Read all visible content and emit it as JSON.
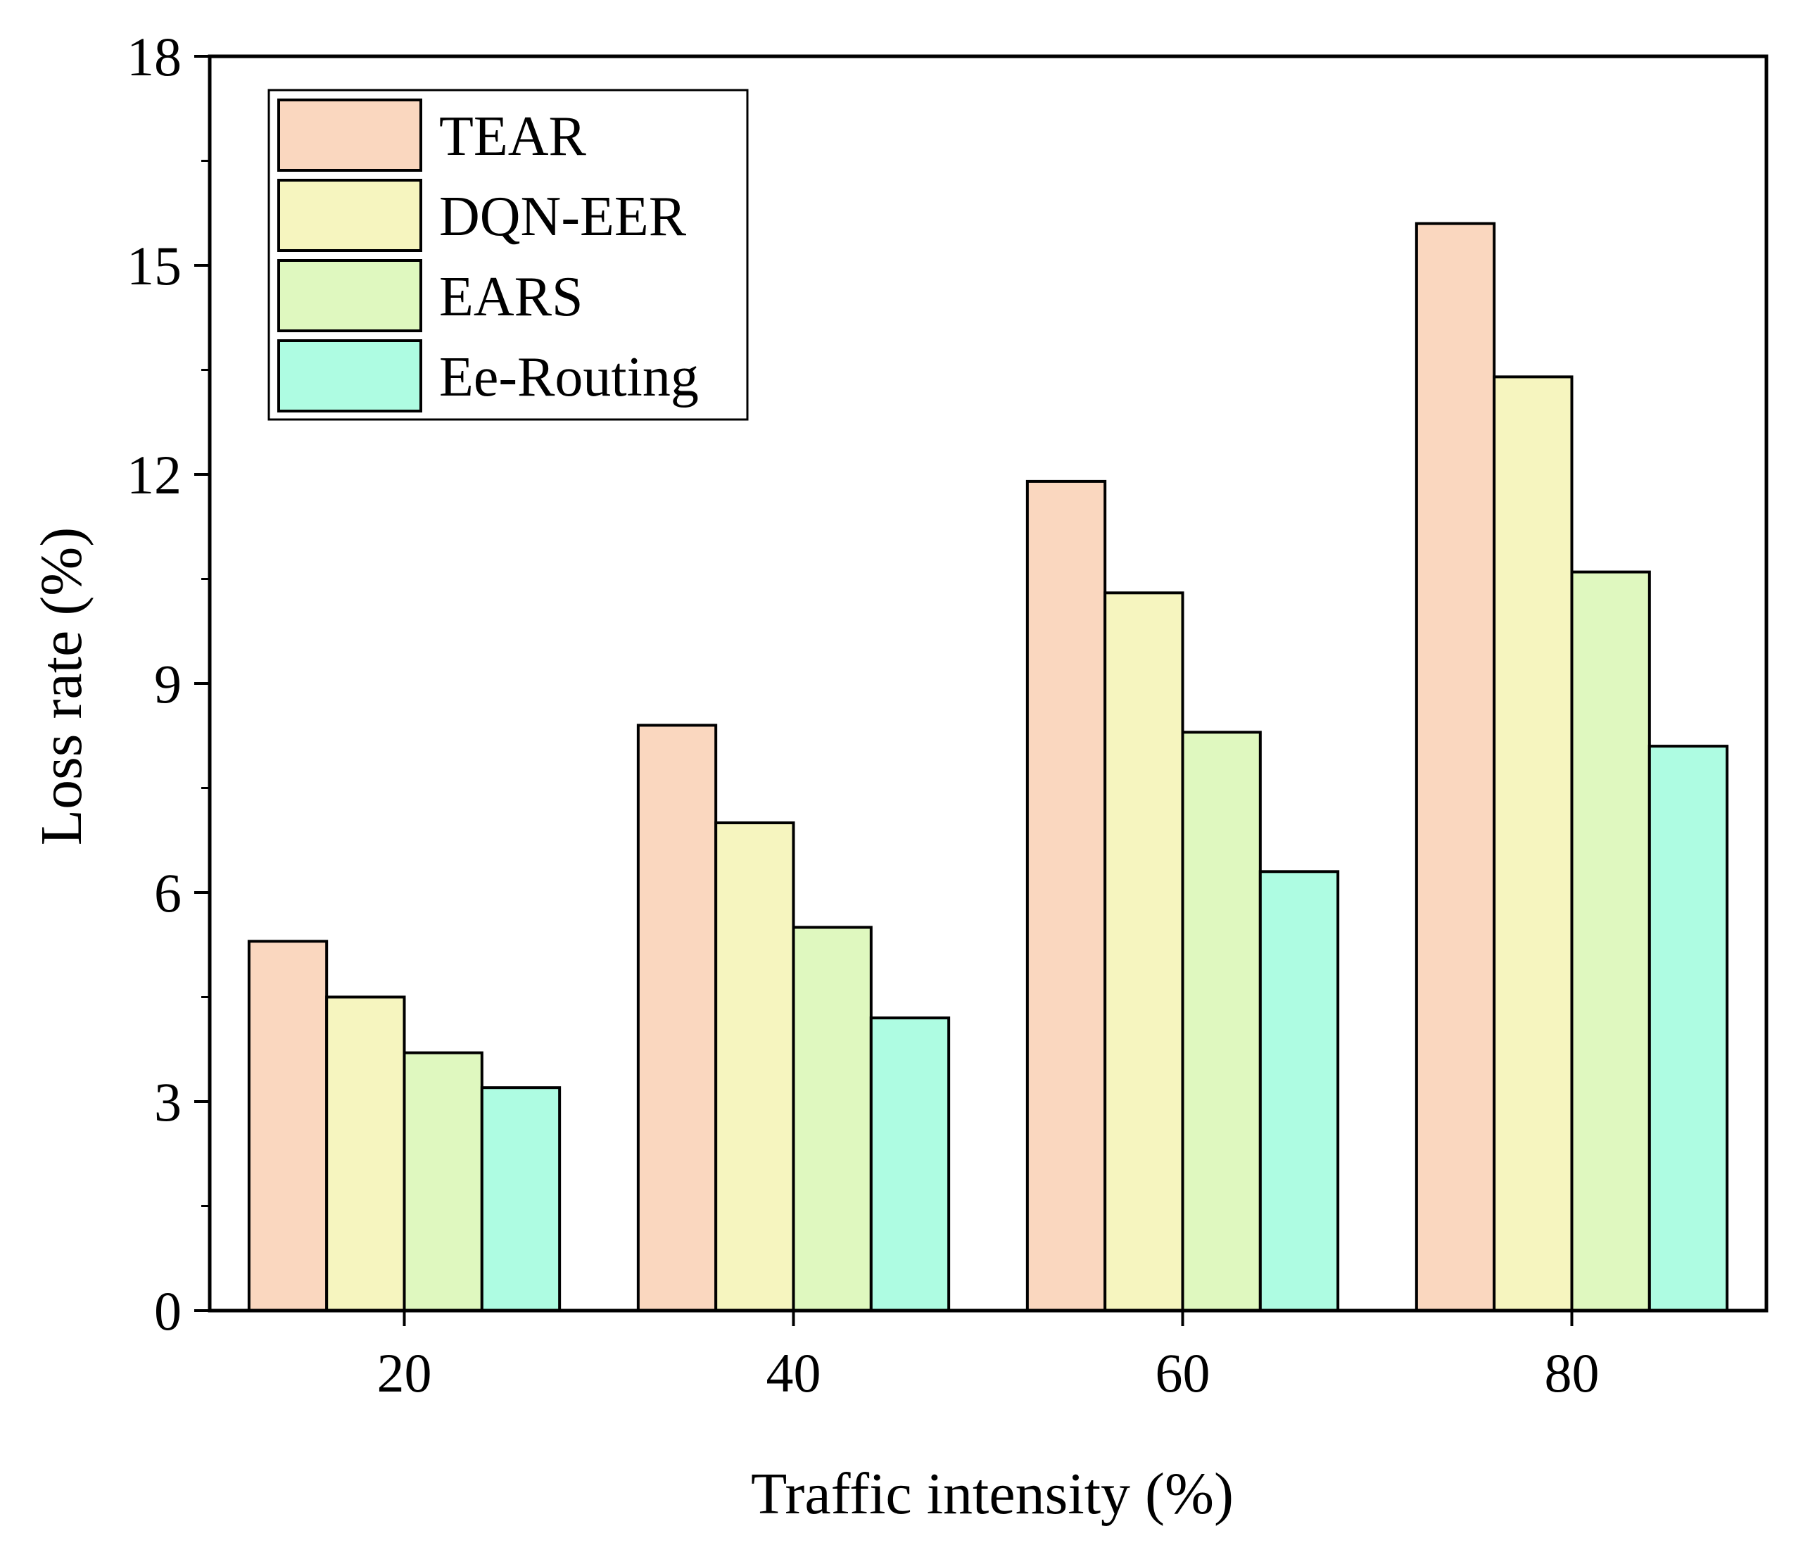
{
  "chart_data": {
    "type": "bar",
    "title": "",
    "xlabel": "Traffic intensity (%)",
    "ylabel": "Loss rate (%)",
    "categories": [
      "20",
      "40",
      "60",
      "80"
    ],
    "ylim": [
      0,
      18
    ],
    "yticks": [
      0,
      3,
      6,
      9,
      12,
      15,
      18
    ],
    "grid": false,
    "legend_position": "top-left",
    "series": [
      {
        "name": "TEAR",
        "color": "#FAD7BF",
        "values": [
          5.3,
          8.4,
          11.9,
          15.6
        ]
      },
      {
        "name": "DQN-EER",
        "color": "#F6F5BF",
        "values": [
          4.5,
          7.0,
          10.3,
          13.4
        ]
      },
      {
        "name": "EARS",
        "color": "#DFF8BF",
        "values": [
          3.7,
          5.5,
          8.3,
          10.6
        ]
      },
      {
        "name": "Ee-Routing",
        "color": "#AEFCE2",
        "values": [
          3.2,
          4.2,
          6.3,
          8.1
        ]
      }
    ]
  }
}
